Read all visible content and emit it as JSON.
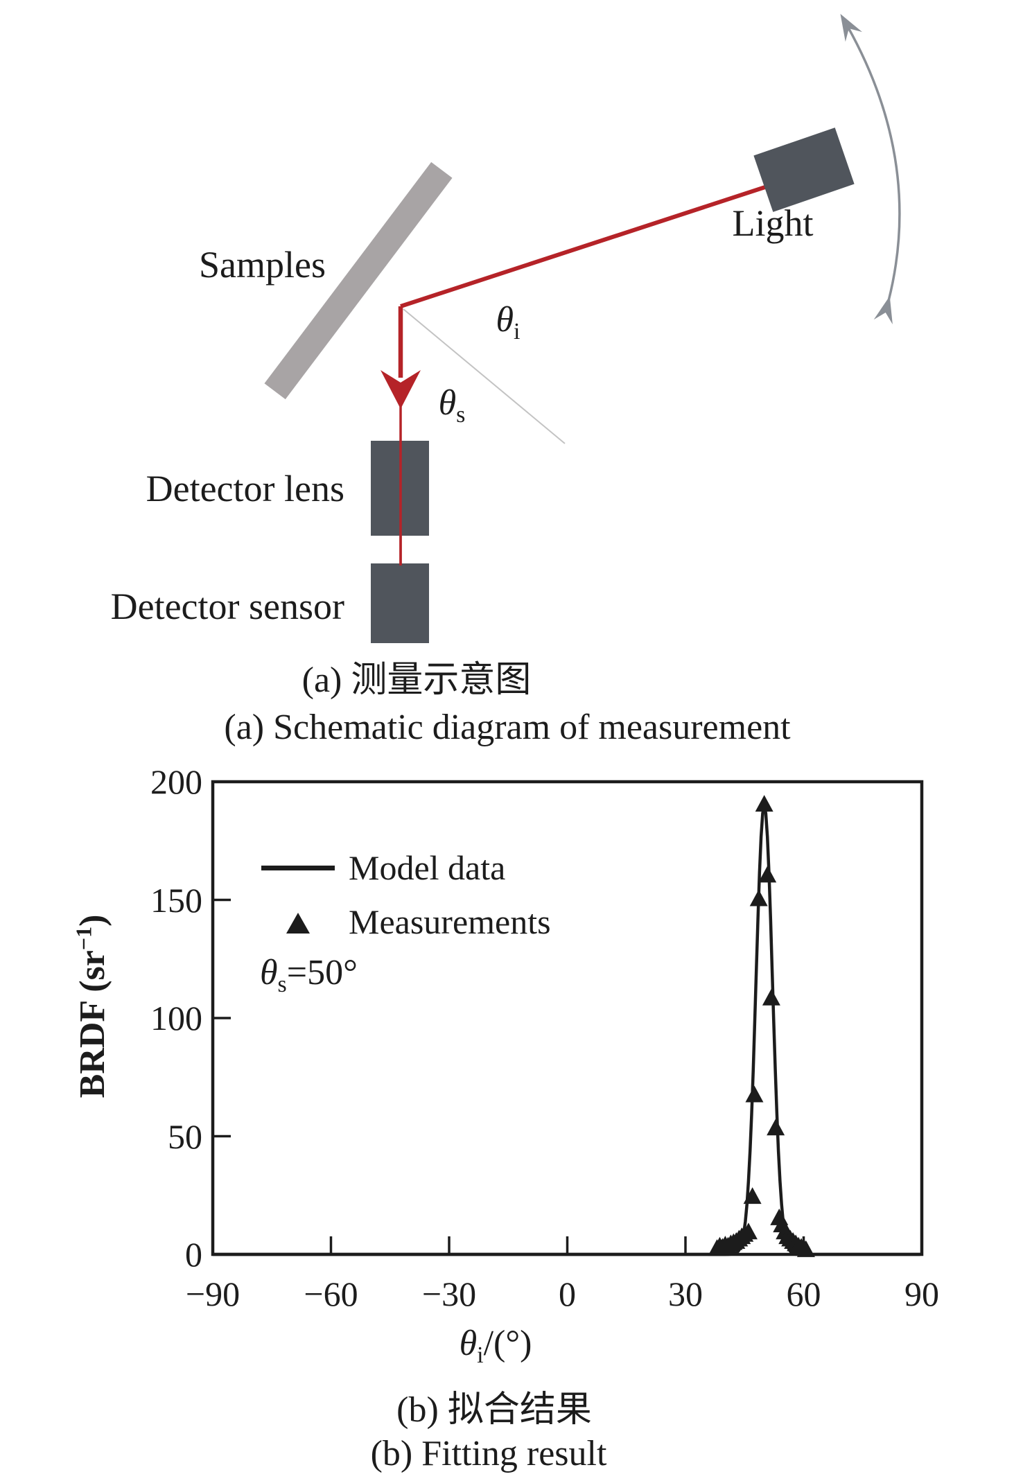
{
  "figure": {
    "panel_a": {
      "samples_label": "Samples",
      "light_label": "Light",
      "theta_i": {
        "sym": "θ",
        "sub": "i"
      },
      "theta_s": {
        "sym": "θ",
        "sub": "s"
      },
      "detector_lens_label": "Detector lens",
      "detector_sensor_label": "Detector sensor",
      "caption_zh": "(a) 测量示意图",
      "caption_en": "(a) Schematic diagram of measurement",
      "colors": {
        "beam_red": "#b52328",
        "device_gray": "#50555c",
        "sample_gray": "#a8a4a5",
        "arc_gray": "#8a8f96",
        "normal_gray": "#c3c3c3"
      }
    },
    "panel_b": {
      "legend": [
        {
          "label": "Model data"
        },
        {
          "label": "Measurements"
        }
      ],
      "condition": {
        "sym": "θ",
        "sub": "s",
        "rest": "=50°"
      },
      "ylabel": {
        "pre": "BRDF (sr",
        "sup": "−1",
        "post": ")"
      },
      "xlabel": {
        "sym": "θ",
        "sub": "i",
        "rest": "/(°)"
      },
      "caption_zh": "(b) 拟合结果",
      "caption_en": "(b) Fitting result",
      "ink_color": "#1c1c1c"
    }
  },
  "chart_data": {
    "type": "line",
    "title": "",
    "xlabel": "θi/(°)",
    "ylabel": "BRDF (sr−1)",
    "xlim": [
      -90,
      90
    ],
    "ylim": [
      0,
      200
    ],
    "xticks": [
      -90,
      -60,
      -30,
      0,
      30,
      60,
      90
    ],
    "yticks": [
      0,
      50,
      100,
      150,
      200
    ],
    "grid": false,
    "legend_position": "upper-left-inside",
    "annotation": "θs=50°",
    "series": [
      {
        "name": "Model data",
        "type": "line",
        "shape": "gaussian",
        "center": 50,
        "sigma": 2.1,
        "peak": 190,
        "baseline": 0
      },
      {
        "name": "Measurements",
        "type": "scatter",
        "marker": "triangle",
        "points": [
          [
            38.0,
            2
          ],
          [
            38.7,
            3
          ],
          [
            39.4,
            2.5
          ],
          [
            40.1,
            3.5
          ],
          [
            40.8,
            3
          ],
          [
            41.5,
            4
          ],
          [
            42.2,
            4.5
          ],
          [
            42.9,
            5
          ],
          [
            43.6,
            6
          ],
          [
            44.3,
            7
          ],
          [
            45.0,
            8
          ],
          [
            46.0,
            9
          ],
          [
            47.0,
            24
          ],
          [
            47.5,
            67
          ],
          [
            48.6,
            150
          ],
          [
            50.0,
            190
          ],
          [
            50.8,
            160
          ],
          [
            51.8,
            108
          ],
          [
            52.9,
            53
          ],
          [
            53.8,
            15
          ],
          [
            54.5,
            12
          ],
          [
            55.2,
            9
          ],
          [
            55.9,
            7
          ],
          [
            56.6,
            6
          ],
          [
            57.3,
            5
          ],
          [
            58.0,
            4
          ],
          [
            58.7,
            3
          ],
          [
            59.4,
            2.5
          ],
          [
            60.1,
            2
          ],
          [
            60.6,
            1.5
          ]
        ]
      }
    ]
  }
}
